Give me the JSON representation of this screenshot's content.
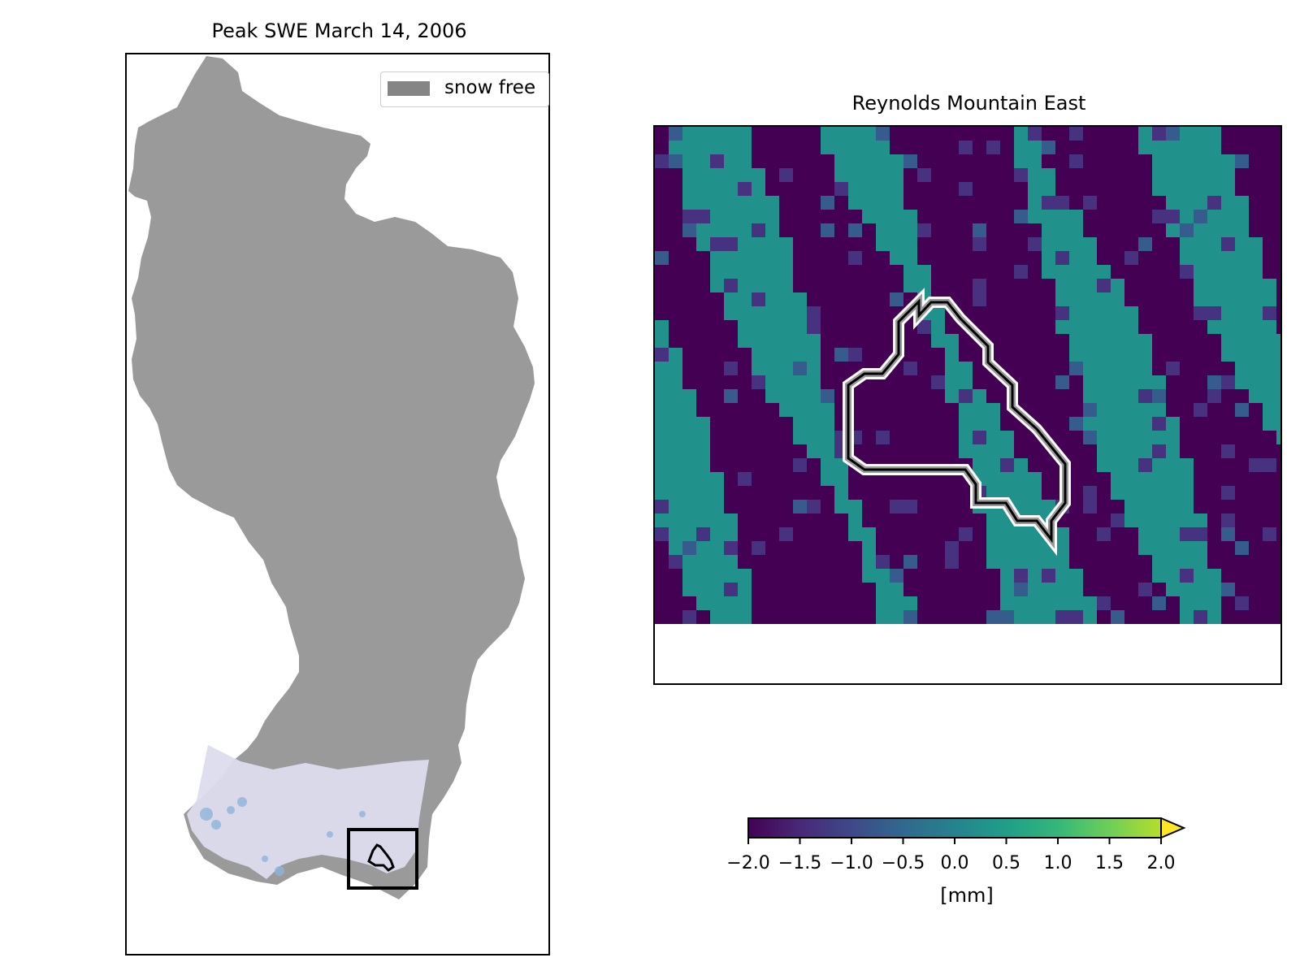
{
  "left_panel": {
    "title": "Peak SWE March 14, 2006",
    "legend_label": "snow free",
    "snow_free_color": "#9a9a9a",
    "legend_swatch_color": "#858585"
  },
  "right_panel": {
    "title": "Reynolds Mountain East",
    "palette": [
      "#440154",
      "#46327e",
      "#365c8d",
      "#21918c",
      "#27ad81"
    ]
  },
  "colorbar": {
    "label": "[mm]",
    "colormap": "viridis",
    "extend": "max",
    "ticks": [
      "−2.0",
      "−1.5",
      "−1.0",
      "−0.5",
      "0.0",
      "0.5",
      "1.0",
      "1.5",
      "2.0"
    ],
    "range": [
      -2.0,
      2.0
    ]
  }
}
